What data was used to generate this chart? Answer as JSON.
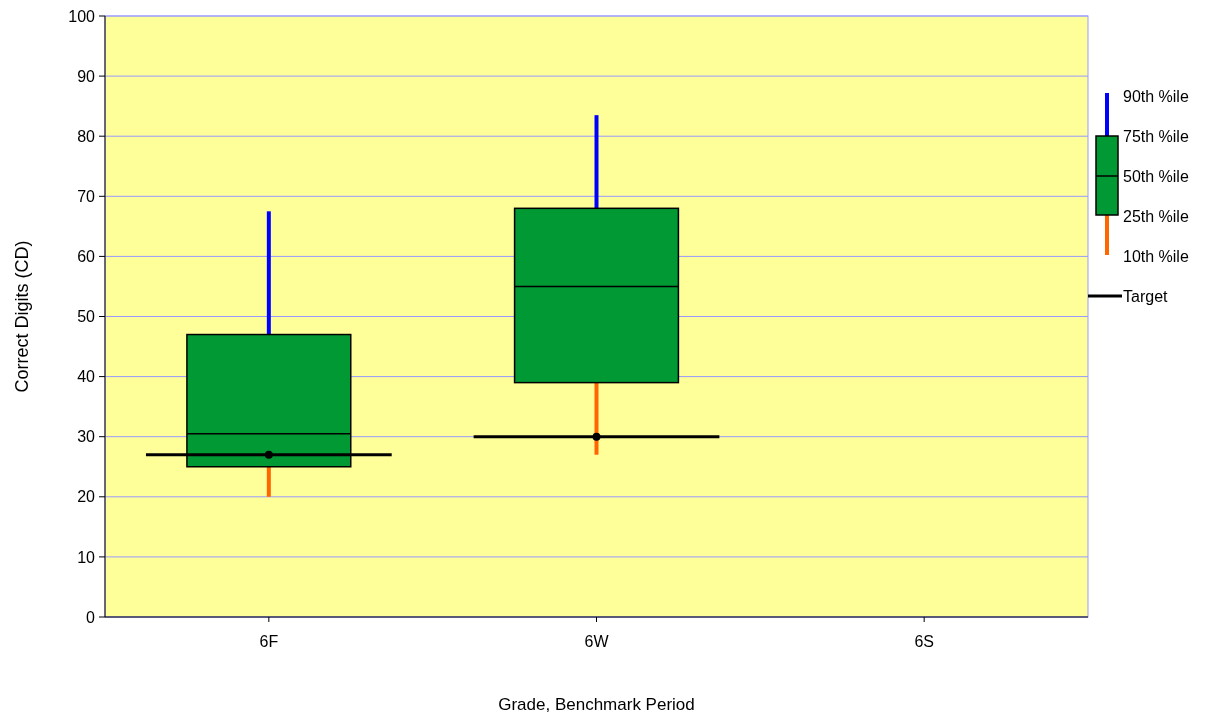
{
  "chart_data": {
    "type": "box",
    "xlabel": "Grade, Benchmark Period",
    "ylabel": "Correct Digits (CD)",
    "categories": [
      "6F",
      "6W",
      "6S"
    ],
    "ylim": [
      0,
      100
    ],
    "yticks": [
      0,
      10,
      20,
      30,
      40,
      50,
      60,
      70,
      80,
      90,
      100
    ],
    "grid": "y",
    "legend": "right",
    "series": [
      {
        "color": "#009933",
        "boxes": [
          {
            "low": 20,
            "q1": 25,
            "median": 30.5,
            "q3": 47,
            "high": 67.5
          },
          {
            "low": 27,
            "q1": 39,
            "median": 55,
            "q3": 68,
            "high": 83.5
          },
          null
        ]
      },
      {
        "name": "Target",
        "type": "scatter",
        "color": "#000000",
        "values": [
          27,
          30,
          null
        ]
      }
    ],
    "annotations": [
      "90th %ile",
      "75th %ile",
      "50th %ile",
      "25th %ile",
      "10th %ile"
    ]
  }
}
